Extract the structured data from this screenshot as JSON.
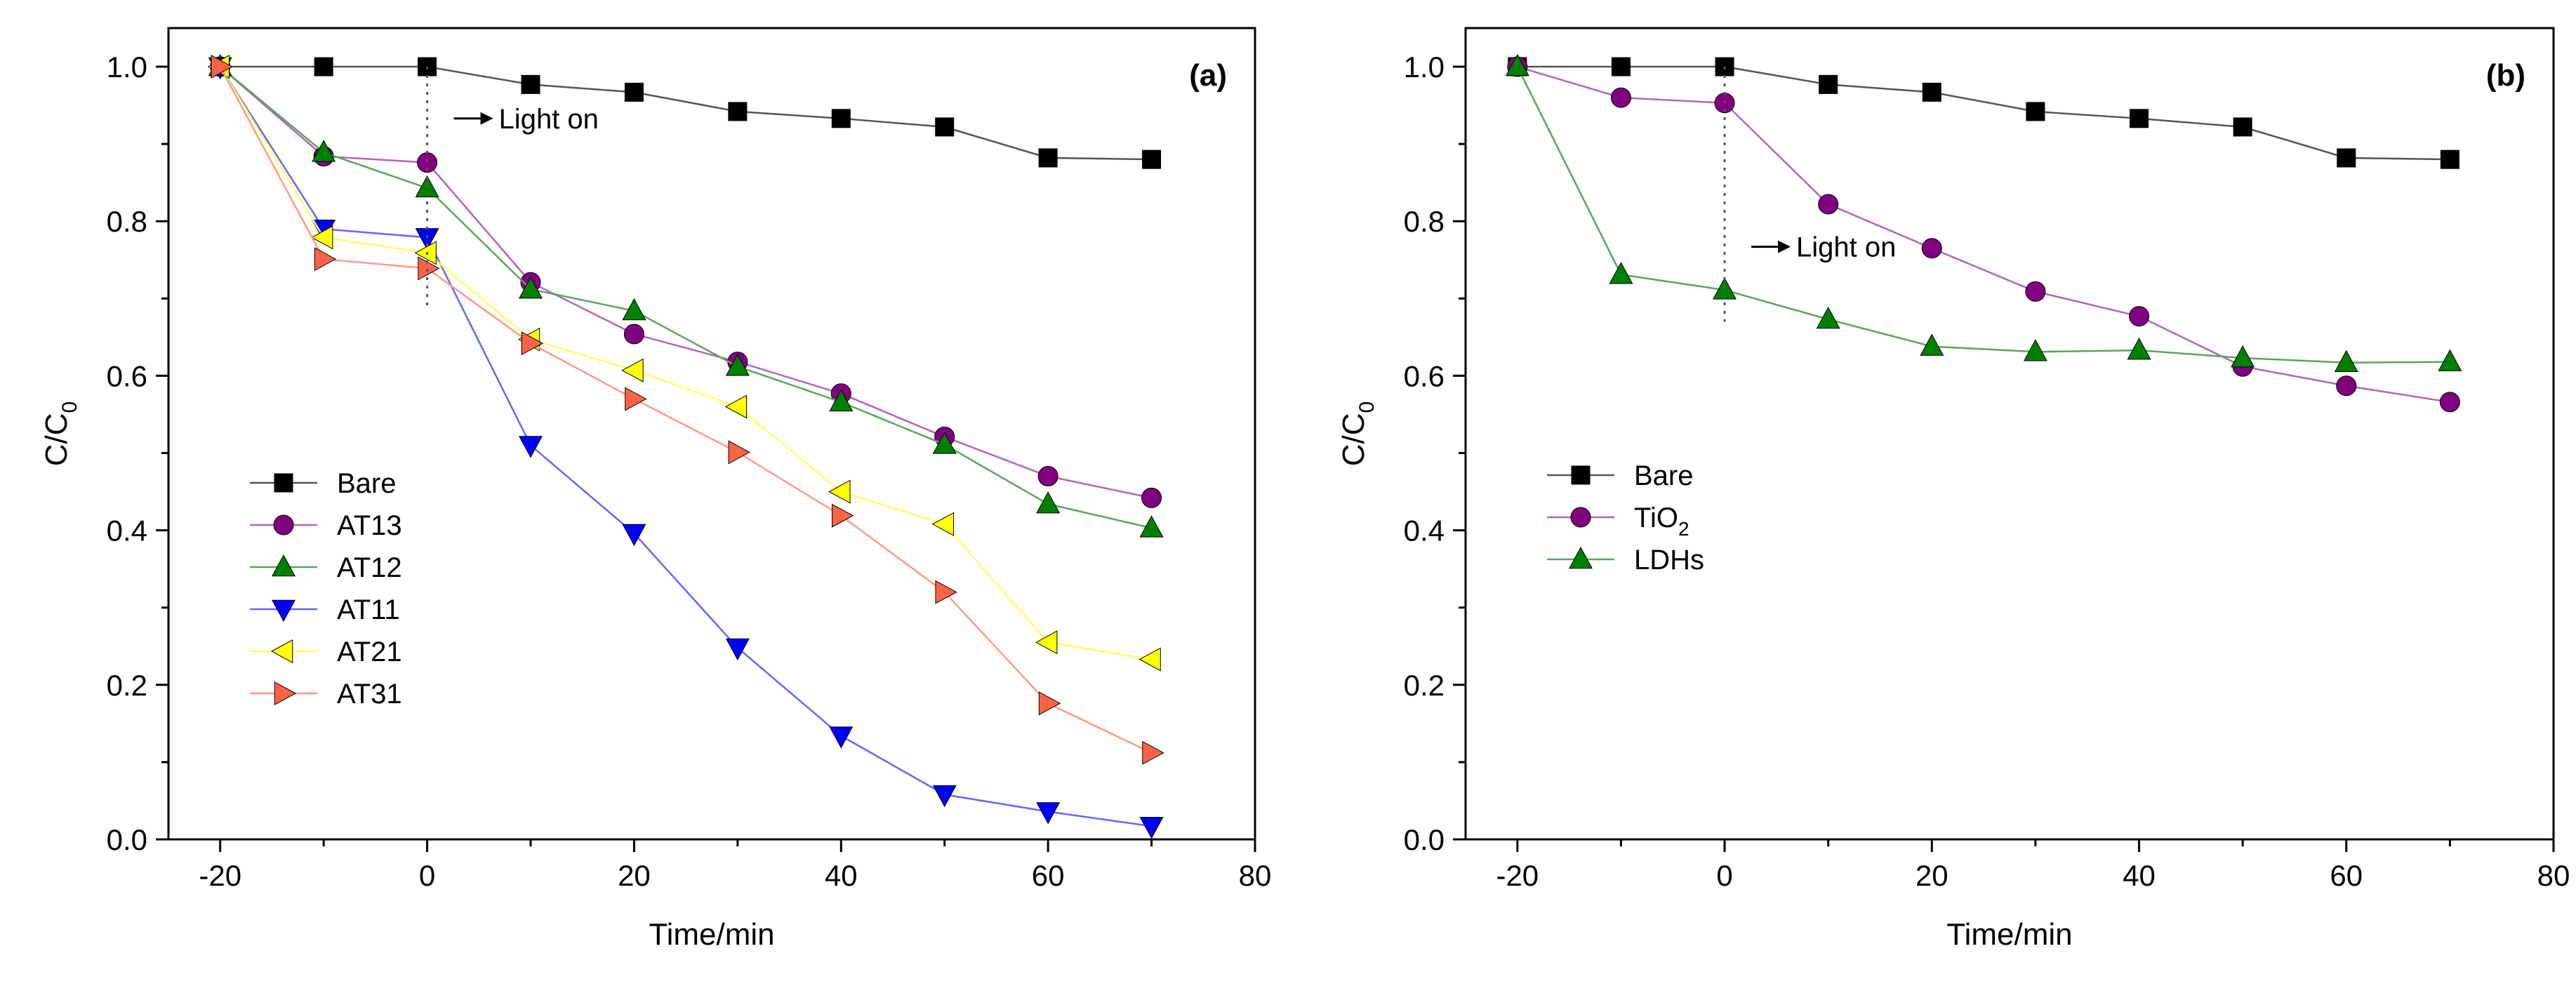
{
  "chart_data": [
    {
      "type": "line",
      "panel_label": "(a)",
      "xlabel": "Time/min",
      "ylabel": "C/C",
      "ylabel_sub": "0",
      "xlim": [
        -25,
        80
      ],
      "ylim": [
        0.0,
        1.05
      ],
      "xticks": [
        -20,
        0,
        20,
        40,
        60,
        80
      ],
      "xtick_labels": [
        "-20",
        "0",
        "20",
        "40",
        "60",
        "80"
      ],
      "yticks": [
        0.0,
        0.2,
        0.4,
        0.6,
        0.8,
        1.0
      ],
      "ytick_labels": [
        "0.0",
        "0.2",
        "0.4",
        "0.6",
        "0.8",
        "1.0"
      ],
      "grid": false,
      "legend_position": "center-left",
      "x": [
        -20,
        -10,
        0,
        10,
        20,
        30,
        40,
        50,
        60,
        70
      ],
      "series": [
        {
          "name": "Bare",
          "marker": "square",
          "color": "#000000",
          "line_color": "#555555",
          "values": [
            1.0,
            1.0,
            1.0,
            0.977,
            0.967,
            0.942,
            0.933,
            0.922,
            0.882,
            0.88
          ]
        },
        {
          "name": "AT13",
          "marker": "circle",
          "color": "#800080",
          "line_color": "#b266b2",
          "values": [
            1.0,
            0.884,
            0.876,
            0.721,
            0.654,
            0.618,
            0.577,
            0.521,
            0.47,
            0.442
          ]
        },
        {
          "name": "AT12",
          "marker": "triangle-up",
          "color": "#008000",
          "line_color": "#5aa65a",
          "values": [
            1.0,
            0.889,
            0.843,
            0.712,
            0.684,
            0.612,
            0.566,
            0.511,
            0.434,
            0.403
          ]
        },
        {
          "name": "AT11",
          "marker": "triangle-down",
          "color": "#0000ff",
          "line_color": "#6666ff",
          "values": [
            1.0,
            0.79,
            0.779,
            0.51,
            0.396,
            0.248,
            0.134,
            0.058,
            0.036,
            0.017
          ]
        },
        {
          "name": "AT21",
          "marker": "triangle-left",
          "color": "#ffff00",
          "line_color": "#ffff66",
          "values": [
            1.0,
            0.779,
            0.759,
            0.647,
            0.607,
            0.56,
            0.45,
            0.408,
            0.255,
            0.233
          ]
        },
        {
          "name": "AT31",
          "marker": "triangle-right",
          "color": "#ff6347",
          "line_color": "#ff9a8a",
          "values": [
            1.0,
            0.751,
            0.739,
            0.642,
            0.57,
            0.501,
            0.419,
            0.32,
            0.176,
            0.112
          ]
        }
      ],
      "annotation": {
        "text": "Light on",
        "x": 0,
        "line_from": 1.0,
        "line_to": 0.69,
        "arrow_y": 0.933
      }
    },
    {
      "type": "line",
      "panel_label": "(b)",
      "xlabel": "Time/min",
      "ylabel": "C/C",
      "ylabel_sub": "0",
      "xlim": [
        -25,
        80
      ],
      "ylim": [
        0.0,
        1.05
      ],
      "xticks": [
        -20,
        0,
        20,
        40,
        60,
        80
      ],
      "xtick_labels": [
        "-20",
        "0",
        "20",
        "40",
        "60",
        "80"
      ],
      "yticks": [
        0.0,
        0.2,
        0.4,
        0.6,
        0.8,
        1.0
      ],
      "ytick_labels": [
        "0.0",
        "0.2",
        "0.4",
        "0.6",
        "0.8",
        "1.0"
      ],
      "grid": false,
      "legend_position": "center-left",
      "x": [
        -20,
        -10,
        0,
        10,
        20,
        30,
        40,
        50,
        60,
        70
      ],
      "series": [
        {
          "name": "Bare",
          "marker": "square",
          "color": "#000000",
          "line_color": "#555555",
          "values": [
            1.0,
            1.0,
            1.0,
            0.977,
            0.967,
            0.942,
            0.933,
            0.922,
            0.882,
            0.88
          ]
        },
        {
          "name": "TiO",
          "name_sub": "2",
          "marker": "circle",
          "color": "#800080",
          "line_color": "#b266b2",
          "values": [
            1.0,
            0.96,
            0.953,
            0.822,
            0.765,
            0.709,
            0.677,
            0.612,
            0.587,
            0.566
          ]
        },
        {
          "name": "LDHs",
          "marker": "triangle-up",
          "color": "#008000",
          "line_color": "#5aa65a",
          "values": [
            1.0,
            0.731,
            0.711,
            0.673,
            0.638,
            0.631,
            0.633,
            0.623,
            0.617,
            0.618
          ]
        }
      ],
      "annotation": {
        "text": "Light on",
        "x": 0,
        "line_from": 1.0,
        "line_to": 0.67,
        "arrow_y": 0.767
      }
    }
  ]
}
